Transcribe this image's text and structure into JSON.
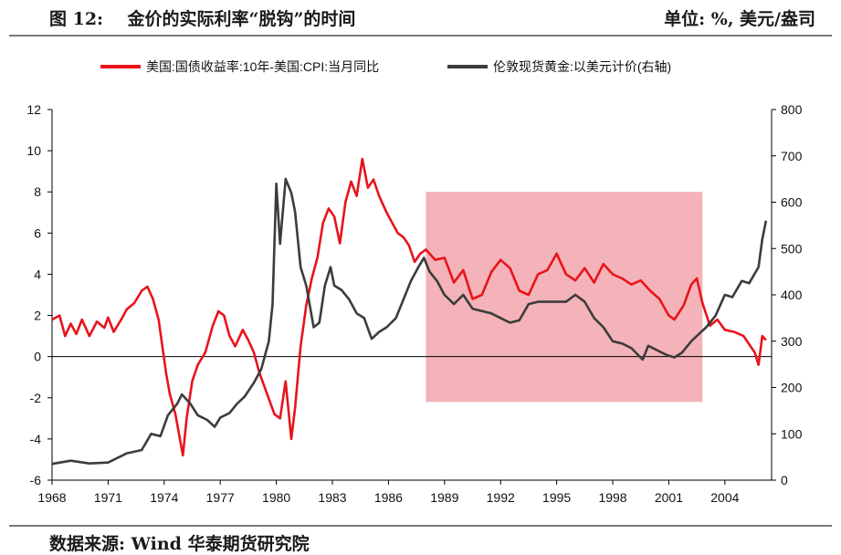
{
  "header": {
    "figure_title": "图 12:    金价的实际利率“脱钩”的时间",
    "unit": "单位: %, 美元/盎司"
  },
  "footer": {
    "source": "数据来源: Wind 华泰期货研究院"
  },
  "colors": {
    "real_rate": "#e8141c",
    "gold": "#3c3c3c",
    "highlight": "#f4b3b8",
    "axis": "#000000"
  },
  "chart_data": {
    "type": "line",
    "title": "",
    "xlabel": "",
    "ylabel": "",
    "x_range": [
      1968,
      2006.5
    ],
    "x_ticks": [
      "1968",
      "1971",
      "1974",
      "1977",
      "1980",
      "1983",
      "1986",
      "1989",
      "1992",
      "1995",
      "1998",
      "2001",
      "2004"
    ],
    "y_left": {
      "range": [
        -6,
        12
      ],
      "ticks": [
        "-6",
        "-4",
        "-2",
        "0",
        "2",
        "4",
        "6",
        "8",
        "10",
        "12"
      ]
    },
    "y_right": {
      "range": [
        0,
        800
      ],
      "ticks": [
        "0",
        "100",
        "200",
        "300",
        "400",
        "500",
        "600",
        "700",
        "800"
      ]
    },
    "legend_position": "top",
    "highlight_region": {
      "x": [
        1988,
        2002.8
      ],
      "y_left": [
        -2.2,
        8
      ]
    },
    "series": [
      {
        "name": "美国:国债收益率:10年-美国:CPI:当月同比",
        "axis": "left",
        "points": [
          [
            1968,
            1.8
          ],
          [
            1968.4,
            2.0
          ],
          [
            1968.7,
            1.0
          ],
          [
            1969.0,
            1.6
          ],
          [
            1969.3,
            1.1
          ],
          [
            1969.6,
            1.8
          ],
          [
            1970.0,
            1.0
          ],
          [
            1970.4,
            1.7
          ],
          [
            1970.8,
            1.4
          ],
          [
            1971.0,
            1.9
          ],
          [
            1971.3,
            1.2
          ],
          [
            1971.7,
            1.8
          ],
          [
            1972.0,
            2.3
          ],
          [
            1972.4,
            2.6
          ],
          [
            1972.8,
            3.2
          ],
          [
            1973.1,
            3.4
          ],
          [
            1973.4,
            2.8
          ],
          [
            1973.7,
            1.8
          ],
          [
            1973.9,
            0.5
          ],
          [
            1974.1,
            -0.8
          ],
          [
            1974.3,
            -1.8
          ],
          [
            1974.6,
            -2.8
          ],
          [
            1974.8,
            -3.8
          ],
          [
            1975.0,
            -4.8
          ],
          [
            1975.2,
            -3.0
          ],
          [
            1975.5,
            -1.2
          ],
          [
            1975.8,
            -0.4
          ],
          [
            1976.2,
            0.2
          ],
          [
            1976.6,
            1.5
          ],
          [
            1976.9,
            2.2
          ],
          [
            1977.2,
            2.0
          ],
          [
            1977.5,
            1.0
          ],
          [
            1977.8,
            0.5
          ],
          [
            1978.2,
            1.3
          ],
          [
            1978.5,
            0.8
          ],
          [
            1978.8,
            0.2
          ],
          [
            1979.1,
            -0.8
          ],
          [
            1979.5,
            -1.8
          ],
          [
            1979.9,
            -2.8
          ],
          [
            1980.2,
            -3.0
          ],
          [
            1980.5,
            -1.2
          ],
          [
            1980.8,
            -4.0
          ],
          [
            1981.0,
            -2.5
          ],
          [
            1981.3,
            0.5
          ],
          [
            1981.6,
            2.5
          ],
          [
            1981.9,
            3.8
          ],
          [
            1982.2,
            4.8
          ],
          [
            1982.5,
            6.5
          ],
          [
            1982.8,
            7.2
          ],
          [
            1983.1,
            6.8
          ],
          [
            1983.4,
            5.5
          ],
          [
            1983.7,
            7.5
          ],
          [
            1984.0,
            8.5
          ],
          [
            1984.3,
            7.8
          ],
          [
            1984.6,
            9.6
          ],
          [
            1984.9,
            8.2
          ],
          [
            1985.2,
            8.6
          ],
          [
            1985.5,
            7.8
          ],
          [
            1985.9,
            7.0
          ],
          [
            1986.2,
            6.5
          ],
          [
            1986.5,
            6.0
          ],
          [
            1986.8,
            5.8
          ],
          [
            1987.1,
            5.4
          ],
          [
            1987.4,
            4.6
          ],
          [
            1987.7,
            5.0
          ],
          [
            1988.0,
            5.2
          ],
          [
            1988.5,
            4.7
          ],
          [
            1989.0,
            4.8
          ],
          [
            1989.5,
            3.6
          ],
          [
            1990.0,
            4.2
          ],
          [
            1990.5,
            2.8
          ],
          [
            1991.0,
            3.0
          ],
          [
            1991.5,
            4.1
          ],
          [
            1992.0,
            4.7
          ],
          [
            1992.5,
            4.3
          ],
          [
            1993.0,
            3.2
          ],
          [
            1993.5,
            3.0
          ],
          [
            1994.0,
            4.0
          ],
          [
            1994.5,
            4.2
          ],
          [
            1995.0,
            5.0
          ],
          [
            1995.5,
            4.0
          ],
          [
            1996.0,
            3.7
          ],
          [
            1996.5,
            4.3
          ],
          [
            1997.0,
            3.6
          ],
          [
            1997.5,
            4.5
          ],
          [
            1998.0,
            4.0
          ],
          [
            1998.5,
            3.8
          ],
          [
            1999.0,
            3.5
          ],
          [
            1999.5,
            3.7
          ],
          [
            2000.0,
            3.2
          ],
          [
            2000.5,
            2.8
          ],
          [
            2001.0,
            2.0
          ],
          [
            2001.3,
            1.8
          ],
          [
            2001.8,
            2.5
          ],
          [
            2002.2,
            3.5
          ],
          [
            2002.5,
            3.8
          ],
          [
            2002.8,
            2.6
          ],
          [
            2003.2,
            1.5
          ],
          [
            2003.6,
            1.8
          ],
          [
            2004.0,
            1.3
          ],
          [
            2004.5,
            1.2
          ],
          [
            2005.0,
            1.0
          ],
          [
            2005.3,
            0.6
          ],
          [
            2005.6,
            0.2
          ],
          [
            2005.8,
            -0.4
          ],
          [
            2006.0,
            1.0
          ],
          [
            2006.2,
            0.8
          ]
        ]
      },
      {
        "name": "伦敦现货黄金:以美元计价(右轴)",
        "axis": "right",
        "points": [
          [
            1968,
            35
          ],
          [
            1969,
            42
          ],
          [
            1970,
            36
          ],
          [
            1971,
            38
          ],
          [
            1972,
            58
          ],
          [
            1972.8,
            65
          ],
          [
            1973.3,
            100
          ],
          [
            1973.8,
            95
          ],
          [
            1974.2,
            140
          ],
          [
            1974.7,
            165
          ],
          [
            1974.95,
            185
          ],
          [
            1975.4,
            165
          ],
          [
            1975.8,
            140
          ],
          [
            1976.3,
            130
          ],
          [
            1976.7,
            115
          ],
          [
            1977.0,
            135
          ],
          [
            1977.5,
            145
          ],
          [
            1977.9,
            165
          ],
          [
            1978.3,
            180
          ],
          [
            1978.8,
            210
          ],
          [
            1979.2,
            240
          ],
          [
            1979.6,
            300
          ],
          [
            1979.8,
            380
          ],
          [
            1980.0,
            640
          ],
          [
            1980.2,
            510
          ],
          [
            1980.5,
            650
          ],
          [
            1980.8,
            620
          ],
          [
            1981.0,
            580
          ],
          [
            1981.3,
            460
          ],
          [
            1981.6,
            420
          ],
          [
            1982.0,
            330
          ],
          [
            1982.3,
            340
          ],
          [
            1982.6,
            420
          ],
          [
            1982.9,
            460
          ],
          [
            1983.1,
            420
          ],
          [
            1983.5,
            410
          ],
          [
            1983.9,
            390
          ],
          [
            1984.3,
            360
          ],
          [
            1984.7,
            350
          ],
          [
            1985.1,
            305
          ],
          [
            1985.5,
            320
          ],
          [
            1985.9,
            330
          ],
          [
            1986.4,
            350
          ],
          [
            1986.8,
            390
          ],
          [
            1987.2,
            430
          ],
          [
            1987.6,
            460
          ],
          [
            1987.9,
            480
          ],
          [
            1988.2,
            450
          ],
          [
            1988.6,
            430
          ],
          [
            1989.0,
            400
          ],
          [
            1989.5,
            380
          ],
          [
            1990.0,
            400
          ],
          [
            1990.5,
            370
          ],
          [
            1991.0,
            365
          ],
          [
            1991.5,
            360
          ],
          [
            1992.0,
            350
          ],
          [
            1992.5,
            340
          ],
          [
            1993.0,
            345
          ],
          [
            1993.5,
            380
          ],
          [
            1994.0,
            385
          ],
          [
            1994.5,
            385
          ],
          [
            1995.0,
            385
          ],
          [
            1995.5,
            385
          ],
          [
            1996.0,
            400
          ],
          [
            1996.5,
            385
          ],
          [
            1997.0,
            350
          ],
          [
            1997.5,
            330
          ],
          [
            1998.0,
            300
          ],
          [
            1998.5,
            295
          ],
          [
            1999.0,
            285
          ],
          [
            1999.6,
            260
          ],
          [
            1999.9,
            290
          ],
          [
            2000.4,
            280
          ],
          [
            2000.9,
            270
          ],
          [
            2001.3,
            265
          ],
          [
            2001.7,
            275
          ],
          [
            2002.2,
            300
          ],
          [
            2002.6,
            315
          ],
          [
            2003.0,
            330
          ],
          [
            2003.5,
            355
          ],
          [
            2004.0,
            400
          ],
          [
            2004.4,
            395
          ],
          [
            2004.9,
            430
          ],
          [
            2005.3,
            425
          ],
          [
            2005.8,
            460
          ],
          [
            2006.0,
            520
          ],
          [
            2006.2,
            560
          ]
        ]
      }
    ]
  }
}
